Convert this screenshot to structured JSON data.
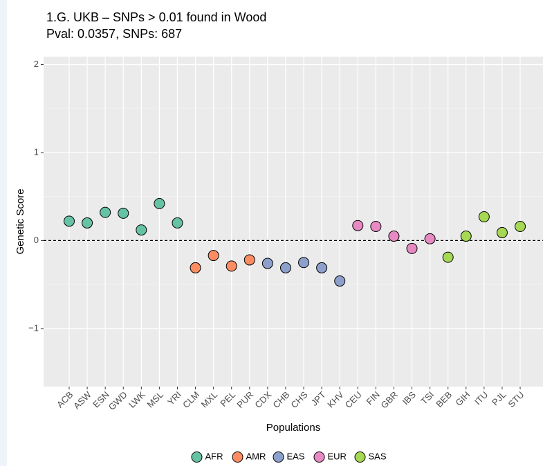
{
  "chart_data": {
    "type": "scatter",
    "title": "1.G. UKB – SNPs > 0.01 found in Wood",
    "subtitle": "Pval: 0.0357, SNPs: 687",
    "x_label": "Populations",
    "y_label": "Genetic Score",
    "categories": [
      "ACB",
      "ASW",
      "ESN",
      "GWD",
      "LWK",
      "MSL",
      "YRI",
      "CLM",
      "MXL",
      "PEL",
      "PUR",
      "CDX",
      "CHB",
      "CHS",
      "JPT",
      "KHV",
      "CEU",
      "FIN",
      "GBR",
      "IBS",
      "TSI",
      "BEB",
      "GIH",
      "ITU",
      "PJL",
      "STU"
    ],
    "series": [
      {
        "name": "AFR",
        "color": "#66c2a5",
        "values": [
          0.22,
          0.2,
          0.32,
          0.31,
          0.12,
          0.42,
          0.2,
          null,
          null,
          null,
          null,
          null,
          null,
          null,
          null,
          null,
          null,
          null,
          null,
          null,
          null,
          null,
          null,
          null,
          null,
          null
        ]
      },
      {
        "name": "AMR",
        "color": "#fc8d62",
        "values": [
          null,
          null,
          null,
          null,
          null,
          null,
          null,
          -0.31,
          -0.17,
          -0.29,
          -0.22,
          null,
          null,
          null,
          null,
          null,
          null,
          null,
          null,
          null,
          null,
          null,
          null,
          null,
          null,
          null
        ]
      },
      {
        "name": "EAS",
        "color": "#8da0cb",
        "values": [
          null,
          null,
          null,
          null,
          null,
          null,
          null,
          null,
          null,
          null,
          null,
          -0.26,
          -0.31,
          -0.25,
          -0.31,
          -0.46,
          null,
          null,
          null,
          null,
          null,
          null,
          null,
          null,
          null,
          null
        ]
      },
      {
        "name": "EUR",
        "color": "#e78ac3",
        "values": [
          null,
          null,
          null,
          null,
          null,
          null,
          null,
          null,
          null,
          null,
          null,
          null,
          null,
          null,
          null,
          null,
          0.17,
          0.16,
          0.05,
          -0.09,
          0.02,
          null,
          null,
          null,
          null,
          null
        ]
      },
      {
        "name": "SAS",
        "color": "#a6d854",
        "values": [
          null,
          null,
          null,
          null,
          null,
          null,
          null,
          null,
          null,
          null,
          null,
          null,
          null,
          null,
          null,
          null,
          null,
          null,
          null,
          null,
          null,
          -0.19,
          0.05,
          0.27,
          0.09,
          0.16
        ]
      }
    ],
    "reference_line": 0,
    "ylim": [
      -1.66,
      2.09
    ],
    "yticks": [
      {
        "value": -1,
        "label": "−1"
      },
      0,
      1,
      2
    ],
    "grid": true,
    "legend": "bottom"
  }
}
